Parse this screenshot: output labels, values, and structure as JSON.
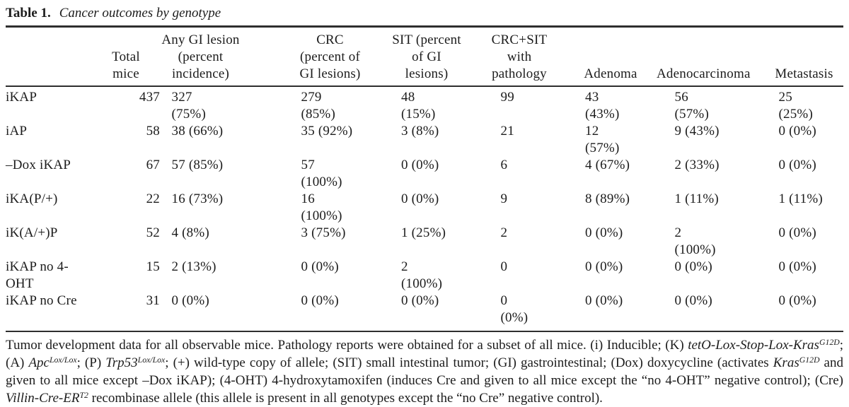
{
  "title": {
    "label": "Table 1.",
    "caption": "Cancer outcomes by genotype"
  },
  "table": {
    "columns": [
      {
        "label": ""
      },
      {
        "label": "Total\nmice"
      },
      {
        "label": "Any GI lesion\n(percent\nincidence)"
      },
      {
        "label": "CRC\n(percent of\nGI lesions)"
      },
      {
        "label": "SIT (percent\nof GI\nlesions)"
      },
      {
        "label": "CRC+SIT\nwith\npathology"
      },
      {
        "label": "Adenoma"
      },
      {
        "label": "Adenocarcinoma"
      },
      {
        "label": "Metastasis"
      }
    ],
    "rows": [
      {
        "genotype": "iKAP",
        "values": [
          "437",
          "327 (75%)",
          "279 (85%)",
          "48 (15%)",
          "99",
          "43 (43%)",
          "56 (57%)",
          "25 (25%)"
        ]
      },
      {
        "genotype": "iAP",
        "values": [
          "58",
          "38 (66%)",
          "35 (92%)",
          "3 (8%)",
          "21",
          "12 (57%)",
          "9 (43%)",
          "0 (0%)"
        ]
      },
      {
        "genotype": "–Dox iKAP",
        "values": [
          "67",
          "57 (85%)",
          "57 (100%)",
          "0 (0%)",
          "6",
          "4 (67%)",
          "2 (33%)",
          "0 (0%)"
        ]
      },
      {
        "genotype": "iKA(P/+)",
        "values": [
          "22",
          "16 (73%)",
          "16 (100%)",
          "0 (0%)",
          "9",
          "8 (89%)",
          "1 (11%)",
          "1 (11%)"
        ]
      },
      {
        "genotype": "iK(A/+)P",
        "values": [
          "52",
          "4 (8%)",
          "3 (75%)",
          "1 (25%)",
          "2",
          "0 (0%)",
          "2 (100%)",
          "0 (0%)"
        ]
      },
      {
        "genotype": "iKAP no 4-OHT",
        "values": [
          "15",
          "2 (13%)",
          "0 (0%)",
          "2 (100%)",
          "0",
          "0 (0%)",
          "0 (0%)",
          "0 (0%)"
        ]
      },
      {
        "genotype": "iKAP no Cre",
        "values": [
          "31",
          "0 (0%)",
          "0 (0%)",
          "0 (0%)",
          "0 (0%)",
          "0 (0%)",
          "0 (0%)",
          "0 (0%)"
        ]
      }
    ]
  },
  "footnote": {
    "segments": [
      {
        "t": "Tumor development data for all observable mice. Pathology reports were obtained for a subset of all mice. (i) Inducible; (K) ",
        "s": ""
      },
      {
        "t": "tetO-Lox-Stop-Lox-Kras",
        "s": "i"
      },
      {
        "t": "G12D",
        "s": "supi"
      },
      {
        "t": "; (A) ",
        "s": ""
      },
      {
        "t": "Apc",
        "s": "i"
      },
      {
        "t": "Lox/Lox",
        "s": "supi"
      },
      {
        "t": "; (P) ",
        "s": ""
      },
      {
        "t": "Trp53",
        "s": "i"
      },
      {
        "t": "Lox/Lox",
        "s": "supi"
      },
      {
        "t": "; (+) wild-type copy of allele; (SIT) small intestinal tumor; (GI) gastrointestinal; (Dox) doxycycline (activates ",
        "s": ""
      },
      {
        "t": "Kras",
        "s": "i"
      },
      {
        "t": "G12D",
        "s": "supi"
      },
      {
        "t": " and given to all mice except –Dox iKAP); (4-OHT) 4-hydroxytamoxifen (induces Cre and given to all mice except the “no 4-OHT” negative control); (Cre) ",
        "s": ""
      },
      {
        "t": "Villin-Cre-ER",
        "s": "i"
      },
      {
        "t": "T2",
        "s": "supi"
      },
      {
        "t": " recombinase allele (this allele is present in all genotypes except the “no Cre” negative control).",
        "s": ""
      }
    ]
  },
  "colors": {
    "text": "#1c1c1c",
    "rule": "#2e2e2e",
    "background": "#ffffff"
  }
}
